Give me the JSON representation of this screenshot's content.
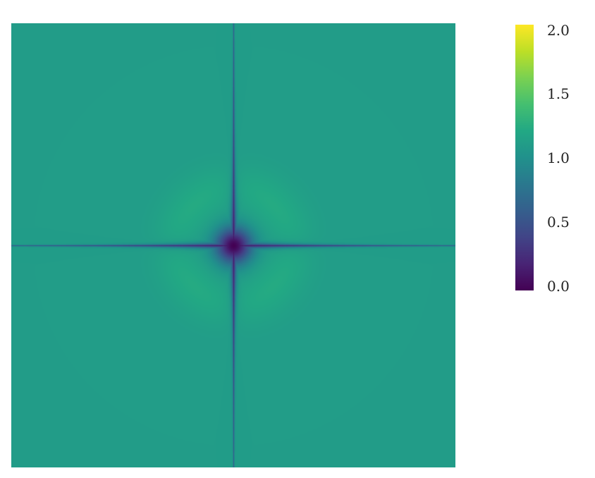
{
  "chart_data": {
    "type": "heatmap",
    "title": "",
    "xlabel": "",
    "ylabel": "",
    "description_values": {
      "background_value": 1.1,
      "center_value": 0.0
    },
    "colormap": "viridis",
    "colorbar": {
      "range": [
        0.0,
        2.0
      ],
      "ticks": [
        2.0,
        1.5,
        1.0,
        0.5,
        0.0
      ],
      "tick_labels": [
        "2.0",
        "1.5",
        "1.0",
        "0.5",
        "0.0"
      ]
    }
  }
}
